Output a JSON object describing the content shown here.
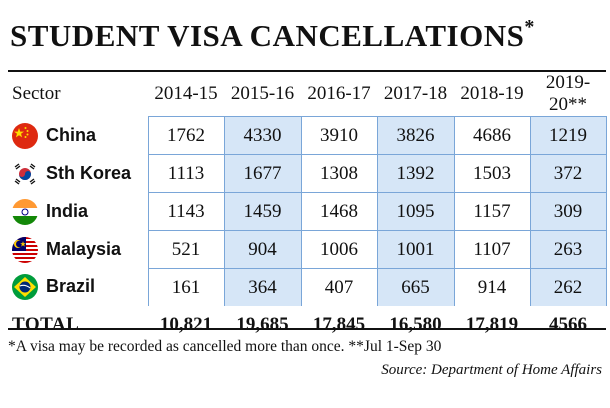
{
  "title": "STUDENT VISA CANCELLATIONS",
  "title_mark": "*",
  "columns": [
    "Sector",
    "2014-15",
    "2015-16",
    "2016-17",
    "2017-18",
    "2018-19",
    "2019-20**"
  ],
  "footnote": "*A visa may be recorded as cancelled more than once.  **Jul 1-Sep 30",
  "source": "Source: Department of Home Affairs",
  "colors": {
    "shade": "#d6e6f7",
    "grid_line": "#7aa6d8"
  },
  "chart_data": {
    "type": "table",
    "title": "STUDENT VISA CANCELLATIONS*",
    "headers": [
      "Sector",
      "2014-15",
      "2015-16",
      "2016-17",
      "2017-18",
      "2018-19",
      "2019-20**"
    ],
    "rows": [
      {
        "country": "China",
        "flag": "china-flag-icon",
        "values": [
          "1762",
          "4330",
          "3910",
          "3826",
          "4686",
          "1219"
        ]
      },
      {
        "country": "Sth Korea",
        "flag": "south-korea-flag-icon",
        "values": [
          "1113",
          "1677",
          "1308",
          "1392",
          "1503",
          "372"
        ]
      },
      {
        "country": "India",
        "flag": "india-flag-icon",
        "values": [
          "1143",
          "1459",
          "1468",
          "1095",
          "1157",
          "309"
        ]
      },
      {
        "country": "Malaysia",
        "flag": "malaysia-flag-icon",
        "values": [
          "521",
          "904",
          "1006",
          "1001",
          "1107",
          "263"
        ]
      },
      {
        "country": "Brazil",
        "flag": "brazil-flag-icon",
        "values": [
          "161",
          "364",
          "407",
          "665",
          "914",
          "262"
        ]
      }
    ],
    "total": {
      "label": "TOTAL",
      "values": [
        "10,821",
        "19,685",
        "17,845",
        "16,580",
        "17,819",
        "4566"
      ]
    }
  }
}
